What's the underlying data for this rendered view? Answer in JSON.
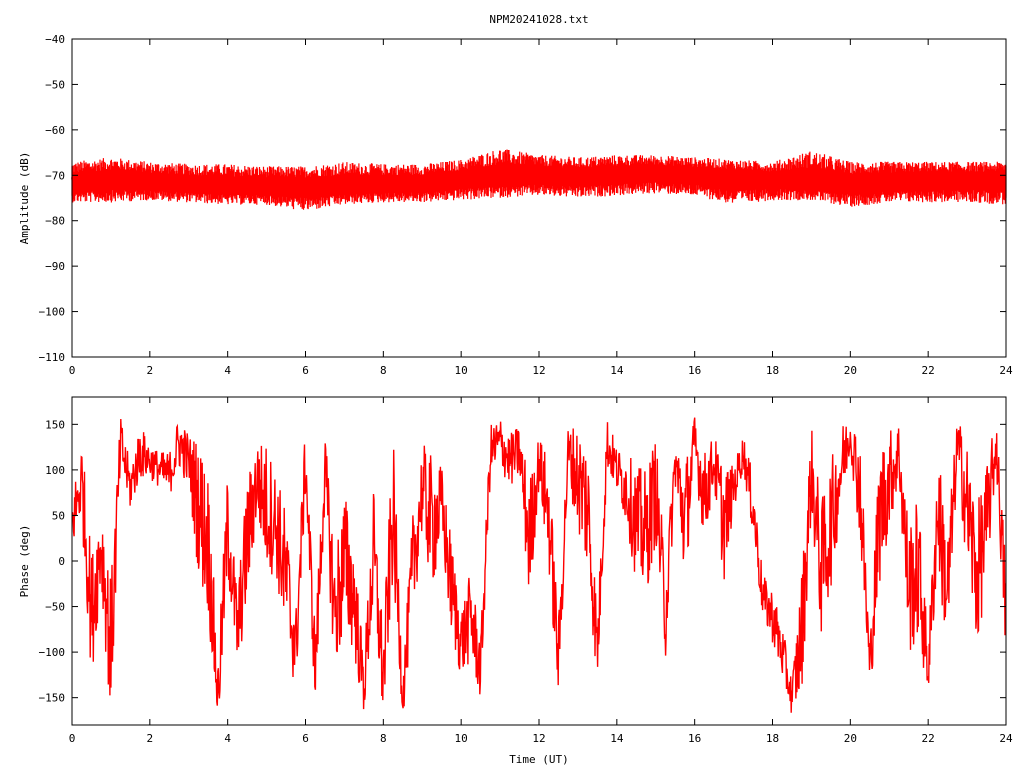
{
  "title": "NPM20241028.txt",
  "colors": {
    "series": "#ff0000",
    "axes": "#000000",
    "background": "#ffffff"
  },
  "chart_data": [
    {
      "type": "line",
      "title": "NPM20241028.txt",
      "xlabel": "",
      "ylabel": "Amplitude (dB)",
      "xlim": [
        0,
        24
      ],
      "ylim": [
        -110,
        -40
      ],
      "grid": false,
      "xticks": [
        "0",
        "2",
        "4",
        "6",
        "8",
        "10",
        "12",
        "14",
        "16",
        "18",
        "20",
        "22",
        "24"
      ],
      "yticks": [
        "-40",
        "-50",
        "-60",
        "-70",
        "-80",
        "-90",
        "-100",
        "-110"
      ],
      "series": [
        {
          "x": [
            0,
            1,
            2,
            3,
            4,
            5,
            6,
            7,
            8,
            9,
            10,
            11,
            12,
            13,
            14,
            15,
            16,
            17,
            18,
            19,
            20,
            21,
            22,
            23,
            24
          ],
          "mean": [
            -72,
            -71,
            -71.5,
            -72,
            -72.5,
            -72.5,
            -72.5,
            -72.5,
            -72,
            -72,
            -71,
            -70.5,
            -70,
            -70.5,
            -70,
            -69.5,
            -70,
            -70.5,
            -71,
            -71.5,
            -72,
            -71.5,
            -71,
            -71,
            -71
          ],
          "max": [
            -67,
            -66,
            -67,
            -67.5,
            -67.5,
            -68,
            -68,
            -67,
            -67.5,
            -67.5,
            -66.5,
            -64,
            -65.5,
            -66,
            -65.5,
            -65.5,
            -66,
            -66.5,
            -67,
            -64.5,
            -67,
            -67,
            -67,
            -67,
            -67
          ],
          "min": [
            -76,
            -76,
            -75.5,
            -76,
            -76.5,
            -76.5,
            -78,
            -76.5,
            -76,
            -76,
            -75.5,
            -75,
            -74.5,
            -75,
            -74.5,
            -74,
            -74.5,
            -76.5,
            -75.5,
            -75.5,
            -77,
            -76,
            -76,
            -76,
            -76.5
          ]
        }
      ]
    },
    {
      "type": "line",
      "title": "",
      "xlabel": "Time (UT)",
      "ylabel": "Phase (deg)",
      "xlim": [
        0,
        24
      ],
      "ylim": [
        -180,
        180
      ],
      "grid": false,
      "xticks": [
        "0",
        "2",
        "4",
        "6",
        "8",
        "10",
        "12",
        "14",
        "16",
        "18",
        "20",
        "22",
        "24"
      ],
      "yticks": [
        "150",
        "100",
        "50",
        "0",
        "-50",
        "-100",
        "-150"
      ],
      "series": [
        {
          "x": [
            0,
            0.25,
            0.5,
            0.75,
            1,
            1.25,
            1.5,
            1.75,
            2,
            2.25,
            2.5,
            2.75,
            3,
            3.25,
            3.5,
            3.75,
            4,
            4.25,
            4.5,
            4.75,
            5,
            5.25,
            5.5,
            5.75,
            6,
            6.25,
            6.5,
            6.75,
            7,
            7.25,
            7.5,
            7.75,
            8,
            8.25,
            8.5,
            8.75,
            9,
            9.25,
            9.5,
            9.75,
            10,
            10.25,
            10.5,
            10.75,
            11,
            11.25,
            11.5,
            11.75,
            12,
            12.25,
            12.5,
            12.75,
            13,
            13.25,
            13.5,
            13.75,
            14,
            14.25,
            14.5,
            14.75,
            15,
            15.25,
            15.5,
            15.75,
            16,
            16.25,
            16.5,
            16.75,
            17,
            17.25,
            17.5,
            17.75,
            18,
            18.25,
            18.5,
            18.75,
            19,
            19.25,
            19.5,
            19.75,
            20,
            20.25,
            20.5,
            20.75,
            21,
            21.25,
            21.5,
            21.75,
            22,
            22.25,
            22.5,
            22.75,
            23,
            23.25,
            23.5,
            23.75,
            24
          ],
          "y": [
            40,
            90,
            -60,
            20,
            -100,
            130,
            80,
            120,
            110,
            100,
            95,
            130,
            110,
            60,
            20,
            -150,
            40,
            -80,
            20,
            90,
            60,
            40,
            -20,
            -100,
            110,
            -120,
            100,
            -60,
            0,
            -40,
            -140,
            10,
            -130,
            60,
            -150,
            -10,
            80,
            40,
            60,
            -30,
            -90,
            -60,
            -120,
            120,
            130,
            110,
            120,
            20,
            110,
            50,
            -110,
            120,
            90,
            60,
            -100,
            130,
            100,
            80,
            40,
            30,
            80,
            -60,
            110,
            40,
            130,
            70,
            110,
            40,
            80,
            120,
            60,
            -40,
            -60,
            -100,
            -150,
            -80,
            100,
            -10,
            40,
            100,
            140,
            80,
            -120,
            50,
            90,
            120,
            -30,
            -10,
            -120,
            60,
            -40,
            130,
            60,
            -20,
            40,
            130,
            -60
          ],
          "band": [
            60,
            90,
            140,
            100,
            160,
            60,
            50,
            60,
            40,
            40,
            50,
            60,
            60,
            150,
            160,
            80,
            120,
            90,
            140,
            90,
            140,
            120,
            150,
            90,
            80,
            90,
            80,
            140,
            160,
            130,
            60,
            140,
            100,
            160,
            50,
            120,
            100,
            150,
            90,
            110,
            80,
            100,
            70,
            60,
            60,
            60,
            60,
            140,
            60,
            120,
            90,
            60,
            120,
            150,
            80,
            60,
            50,
            80,
            130,
            140,
            120,
            100,
            60,
            140,
            60,
            100,
            60,
            130,
            50,
            40,
            70,
            50,
            60,
            60,
            40,
            140,
            100,
            150,
            140,
            100,
            40,
            120,
            60,
            160,
            110,
            70,
            150,
            160,
            60,
            130,
            150,
            60,
            140,
            160,
            130,
            60,
            120
          ]
        }
      ]
    }
  ]
}
